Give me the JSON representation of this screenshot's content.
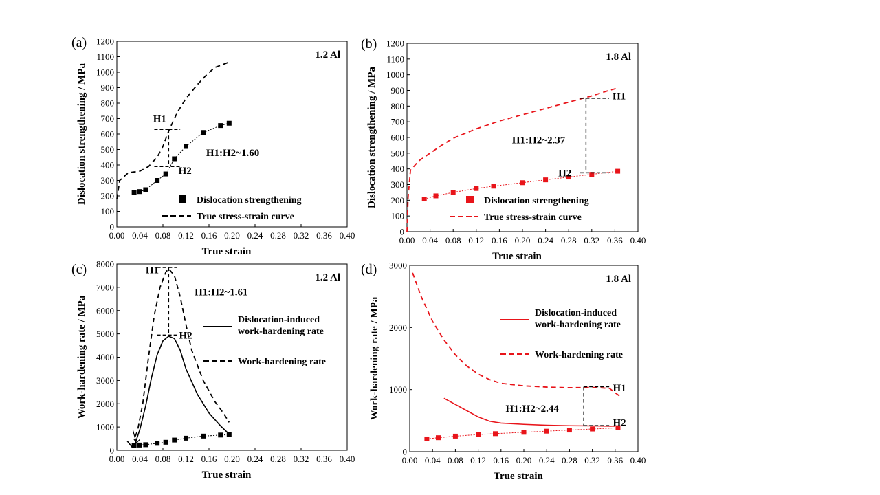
{
  "chart_data": [
    {
      "panel": "(a)",
      "type": "line",
      "tag": "1.2 Al",
      "xlabel": "True strain",
      "ylabel": "Dislocation strengthening / MPa",
      "xlim": [
        0.0,
        0.4
      ],
      "ylim": [
        0,
        1200
      ],
      "xticks": [
        "0.00",
        "0.04",
        "0.08",
        "0.12",
        "0.16",
        "0.20",
        "0.24",
        "0.28",
        "0.32",
        "0.36",
        "0.40"
      ],
      "yticks": [
        "0",
        "100",
        "200",
        "300",
        "400",
        "500",
        "600",
        "700",
        "800",
        "900",
        "1000",
        "1100",
        "1200"
      ],
      "legend": {
        "position": "bottom-right",
        "items": [
          {
            "label": "Dislocation strengthening",
            "marker": "square",
            "color": "#000000"
          },
          {
            "label": "True stress-strain curve",
            "line": "dashed",
            "color": "#000000"
          }
        ]
      },
      "series": [
        {
          "name": "True stress-strain curve",
          "style": "dashed",
          "color": "#000000",
          "points": [
            [
              0.0,
              180
            ],
            [
              0.005,
              300
            ],
            [
              0.02,
              350
            ],
            [
              0.04,
              360
            ],
            [
              0.055,
              390
            ],
            [
              0.07,
              450
            ],
            [
              0.08,
              520
            ],
            [
              0.09,
              620
            ],
            [
              0.105,
              740
            ],
            [
              0.12,
              830
            ],
            [
              0.14,
              920
            ],
            [
              0.155,
              980
            ],
            [
              0.17,
              1030
            ],
            [
              0.195,
              1065
            ]
          ]
        },
        {
          "name": "Dislocation strengthening",
          "style": "dotted-marker",
          "marker": "square",
          "color": "#000000",
          "points": [
            [
              0.03,
              222
            ],
            [
              0.04,
              228
            ],
            [
              0.05,
              240
            ],
            [
              0.07,
              300
            ],
            [
              0.085,
              342
            ],
            [
              0.1,
              440
            ],
            [
              0.12,
              520
            ],
            [
              0.15,
              610
            ],
            [
              0.18,
              655
            ],
            [
              0.195,
              670
            ]
          ]
        }
      ],
      "annotations": [
        {
          "text": "H1",
          "x": 0.063,
          "y": 700
        },
        {
          "text": "H2",
          "x": 0.107,
          "y": 365
        },
        {
          "text": "H1:H2~1.60",
          "x": 0.155,
          "y": 480
        }
      ],
      "bracket": {
        "x": 0.09,
        "y_top": 630,
        "y_bottom": 390,
        "left_from": 0.065,
        "right_to": 0.11
      }
    },
    {
      "panel": "(b)",
      "type": "line",
      "tag": "1.8 Al",
      "xlabel": "True strain",
      "ylabel": "Dislocation strengthening / MPa",
      "xlim": [
        0.0,
        0.4
      ],
      "ylim": [
        0,
        1200
      ],
      "xticks": [
        "0.00",
        "0.04",
        "0.08",
        "0.12",
        "0.16",
        "0.20",
        "0.24",
        "0.28",
        "0.32",
        "0.36",
        "0.40"
      ],
      "yticks": [
        "0",
        "100",
        "200",
        "300",
        "400",
        "500",
        "600",
        "700",
        "800",
        "900",
        "1000",
        "1100",
        "1200"
      ],
      "legend": {
        "position": "bottom-right",
        "items": [
          {
            "label": "Dislocation strengthening",
            "marker": "square",
            "color": "#e8141a"
          },
          {
            "label": "True stress-strain curve",
            "line": "dashed",
            "color": "#e8141a"
          }
        ]
      },
      "series": [
        {
          "name": "True stress-strain curve",
          "style": "dashed",
          "color": "#e8141a",
          "points": [
            [
              0.0,
              0
            ],
            [
              0.002,
              220
            ],
            [
              0.006,
              390
            ],
            [
              0.02,
              450
            ],
            [
              0.04,
              500
            ],
            [
              0.06,
              550
            ],
            [
              0.08,
              595
            ],
            [
              0.12,
              655
            ],
            [
              0.16,
              705
            ],
            [
              0.2,
              745
            ],
            [
              0.24,
              785
            ],
            [
              0.28,
              825
            ],
            [
              0.32,
              865
            ],
            [
              0.35,
              900
            ],
            [
              0.365,
              915
            ]
          ]
        },
        {
          "name": "Dislocation strengthening",
          "style": "dotted-marker",
          "marker": "square",
          "color": "#e8141a",
          "points": [
            [
              0.03,
              208
            ],
            [
              0.05,
              228
            ],
            [
              0.08,
              250
            ],
            [
              0.12,
              275
            ],
            [
              0.15,
              290
            ],
            [
              0.2,
              312
            ],
            [
              0.24,
              330
            ],
            [
              0.28,
              348
            ],
            [
              0.32,
              365
            ],
            [
              0.365,
              385
            ]
          ]
        }
      ],
      "annotations": [
        {
          "text": "H1",
          "x": 0.356,
          "y": 865
        },
        {
          "text": "H2",
          "x": 0.262,
          "y": 375
        },
        {
          "text": "H1:H2~2.37",
          "x": 0.182,
          "y": 585
        }
      ],
      "bracket": {
        "x": 0.31,
        "y_top": 850,
        "y_bottom": 375,
        "left_from": 0.3,
        "right_to": 0.35
      }
    },
    {
      "panel": "(c)",
      "type": "line",
      "tag": "1.2 Al",
      "xlabel": "True strain",
      "ylabel": "Work-hardening rate / MPa",
      "xlim": [
        0.0,
        0.4
      ],
      "ylim": [
        0,
        8000
      ],
      "xticks": [
        "0.00",
        "0.04",
        "0.08",
        "0.12",
        "0.16",
        "0.20",
        "0.24",
        "0.28",
        "0.32",
        "0.36",
        "0.40"
      ],
      "yticks": [
        "0",
        "1000",
        "2000",
        "3000",
        "4000",
        "5000",
        "6000",
        "7000",
        "8000"
      ],
      "legend": {
        "position": "right",
        "items": [
          {
            "label": "Dislocation-induced\nwork-hardening rate",
            "line": "solid",
            "color": "#000000"
          },
          {
            "label": "Work-hardening rate",
            "line": "dashed",
            "color": "#000000"
          }
        ]
      },
      "series": [
        {
          "name": "Work-hardening rate",
          "style": "dashed",
          "color": "#000000",
          "points": [
            [
              0.032,
              600
            ],
            [
              0.036,
              850
            ],
            [
              0.045,
              2000
            ],
            [
              0.055,
              4000
            ],
            [
              0.065,
              5800
            ],
            [
              0.075,
              7000
            ],
            [
              0.085,
              7650
            ],
            [
              0.09,
              7800
            ],
            [
              0.1,
              7500
            ],
            [
              0.11,
              6600
            ],
            [
              0.12,
              5400
            ],
            [
              0.13,
              4300
            ],
            [
              0.15,
              3000
            ],
            [
              0.17,
              2100
            ],
            [
              0.185,
              1600
            ],
            [
              0.195,
              1200
            ]
          ]
        },
        {
          "name": "Dislocation-induced work-hardening rate",
          "style": "solid",
          "color": "#000000",
          "points": [
            [
              0.018,
              400
            ],
            [
              0.026,
              150
            ],
            [
              0.032,
              300
            ],
            [
              0.04,
              900
            ],
            [
              0.05,
              1900
            ],
            [
              0.06,
              3100
            ],
            [
              0.07,
              4100
            ],
            [
              0.08,
              4700
            ],
            [
              0.09,
              4900
            ],
            [
              0.1,
              4800
            ],
            [
              0.11,
              4300
            ],
            [
              0.12,
              3500
            ],
            [
              0.14,
              2400
            ],
            [
              0.16,
              1600
            ],
            [
              0.18,
              1050
            ],
            [
              0.195,
              700
            ]
          ]
        },
        {
          "name": "",
          "style": "dotted-marker",
          "marker": "square",
          "color": "#000000",
          "points": [
            [
              0.03,
              220
            ],
            [
              0.04,
              225
            ],
            [
              0.05,
              240
            ],
            [
              0.07,
              300
            ],
            [
              0.085,
              345
            ],
            [
              0.1,
              440
            ],
            [
              0.12,
              520
            ],
            [
              0.15,
              610
            ],
            [
              0.18,
              655
            ],
            [
              0.195,
              670
            ]
          ]
        }
      ],
      "annotations": [
        {
          "text": "H1",
          "x": 0.05,
          "y": 7750
        },
        {
          "text": "H2",
          "x": 0.108,
          "y": 4950
        },
        {
          "text": "H1:H2~1.61",
          "x": 0.135,
          "y": 6800
        }
      ],
      "bracket": {
        "x": 0.09,
        "y_top": 7850,
        "y_bottom": 4950,
        "left_from": 0.07,
        "right_to": 0.105
      },
      "arrow": {
        "from": [
          0.028,
          850
        ],
        "to": [
          0.034,
          320
        ]
      }
    },
    {
      "panel": "(d)",
      "type": "line",
      "tag": "1.8 Al",
      "xlabel": "True strain",
      "ylabel": "Work-hardening rate / MPa",
      "xlim": [
        0.0,
        0.4
      ],
      "ylim": [
        0,
        3000
      ],
      "xticks": [
        "0.00",
        "0.04",
        "0.08",
        "0.12",
        "0.16",
        "0.20",
        "0.24",
        "0.28",
        "0.32",
        "0.36",
        "0.40"
      ],
      "yticks": [
        "0",
        "1000",
        "2000",
        "3000"
      ],
      "legend": {
        "position": "right",
        "items": [
          {
            "label": "Dislocation-induced\nwork-hardening rate",
            "line": "solid",
            "color": "#e8141a"
          },
          {
            "label": "Work-hardening rate",
            "line": "dashed",
            "color": "#e8141a"
          }
        ]
      },
      "series": [
        {
          "name": "Work-hardening rate",
          "style": "dashed",
          "color": "#e8141a",
          "points": [
            [
              0.005,
              2880
            ],
            [
              0.02,
              2500
            ],
            [
              0.04,
              2100
            ],
            [
              0.06,
              1800
            ],
            [
              0.08,
              1560
            ],
            [
              0.1,
              1380
            ],
            [
              0.12,
              1250
            ],
            [
              0.14,
              1160
            ],
            [
              0.16,
              1100
            ],
            [
              0.2,
              1060
            ],
            [
              0.24,
              1040
            ],
            [
              0.28,
              1030
            ],
            [
              0.32,
              1035
            ],
            [
              0.35,
              1020
            ],
            [
              0.37,
              880
            ]
          ]
        },
        {
          "name": "Dislocation-induced work-hardening rate",
          "style": "solid",
          "color": "#e8141a",
          "points": [
            [
              0.06,
              860
            ],
            [
              0.08,
              760
            ],
            [
              0.1,
              660
            ],
            [
              0.12,
              560
            ],
            [
              0.14,
              490
            ],
            [
              0.16,
              460
            ],
            [
              0.2,
              440
            ],
            [
              0.24,
              425
            ],
            [
              0.28,
              418
            ],
            [
              0.32,
              415
            ],
            [
              0.36,
              410
            ]
          ]
        },
        {
          "name": "",
          "style": "dotted-marker",
          "marker": "square",
          "color": "#e8141a",
          "points": [
            [
              0.03,
              205
            ],
            [
              0.05,
              225
            ],
            [
              0.08,
              250
            ],
            [
              0.12,
              275
            ],
            [
              0.15,
              290
            ],
            [
              0.2,
              312
            ],
            [
              0.24,
              330
            ],
            [
              0.28,
              348
            ],
            [
              0.32,
              365
            ],
            [
              0.365,
              385
            ]
          ]
        }
      ],
      "annotations": [
        {
          "text": "H1",
          "x": 0.356,
          "y": 1030
        },
        {
          "text": "H2",
          "x": 0.356,
          "y": 470
        },
        {
          "text": "H1:H2~2.44",
          "x": 0.168,
          "y": 700
        }
      ],
      "bracket": {
        "x": 0.305,
        "y_top": 1045,
        "y_bottom": 420,
        "left_from": 0.305,
        "right_to": 0.35
      }
    }
  ]
}
